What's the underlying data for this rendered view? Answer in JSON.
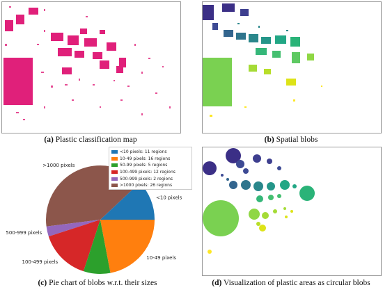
{
  "captions": {
    "a": {
      "letter": "(a)",
      "text": " Plastic classification map"
    },
    "b": {
      "letter": "(b)",
      "text": " Spatial blobs"
    },
    "c": {
      "letter": "(c)",
      "text": " Pie chart of blobs w.r.t. their sizes"
    },
    "d": {
      "letter": "(d)",
      "text": " Visualization of plastic areas as circular blobs"
    }
  },
  "chart_data": {
    "type": "pie",
    "title": "",
    "legend_position": "top-right",
    "slices": [
      {
        "label": "<10 pixels",
        "legend": "<10 pixels: 11 regions",
        "regions": 11,
        "share": 0.12,
        "color": "#1f77b4"
      },
      {
        "label": ">1000 pixels",
        "legend": ">1000 pixels: 26 regions",
        "regions": 26,
        "share": 0.4,
        "color": "#8c564b"
      },
      {
        "label": "500-999 pixels",
        "legend": "500-999 pixels: 2 regions",
        "regions": 2,
        "share": 0.03,
        "color": "#9467bd"
      },
      {
        "label": "100-499 pixels",
        "legend": "100-499 pixels: 12 regions",
        "regions": 12,
        "share": 0.15,
        "color": "#d62728"
      },
      {
        "label": "50-99 pixels",
        "legend": "50-99 pixels: 5 regions",
        "regions": 5,
        "share": 0.08,
        "color": "#2ca02c"
      },
      {
        "label": "10-49 pixels",
        "legend": "10-49 pixels: 16 regions",
        "regions": 16,
        "share": 0.22,
        "color": "#ff7f0e"
      }
    ],
    "legend_order": [
      0,
      5,
      4,
      3,
      2,
      1
    ]
  }
}
